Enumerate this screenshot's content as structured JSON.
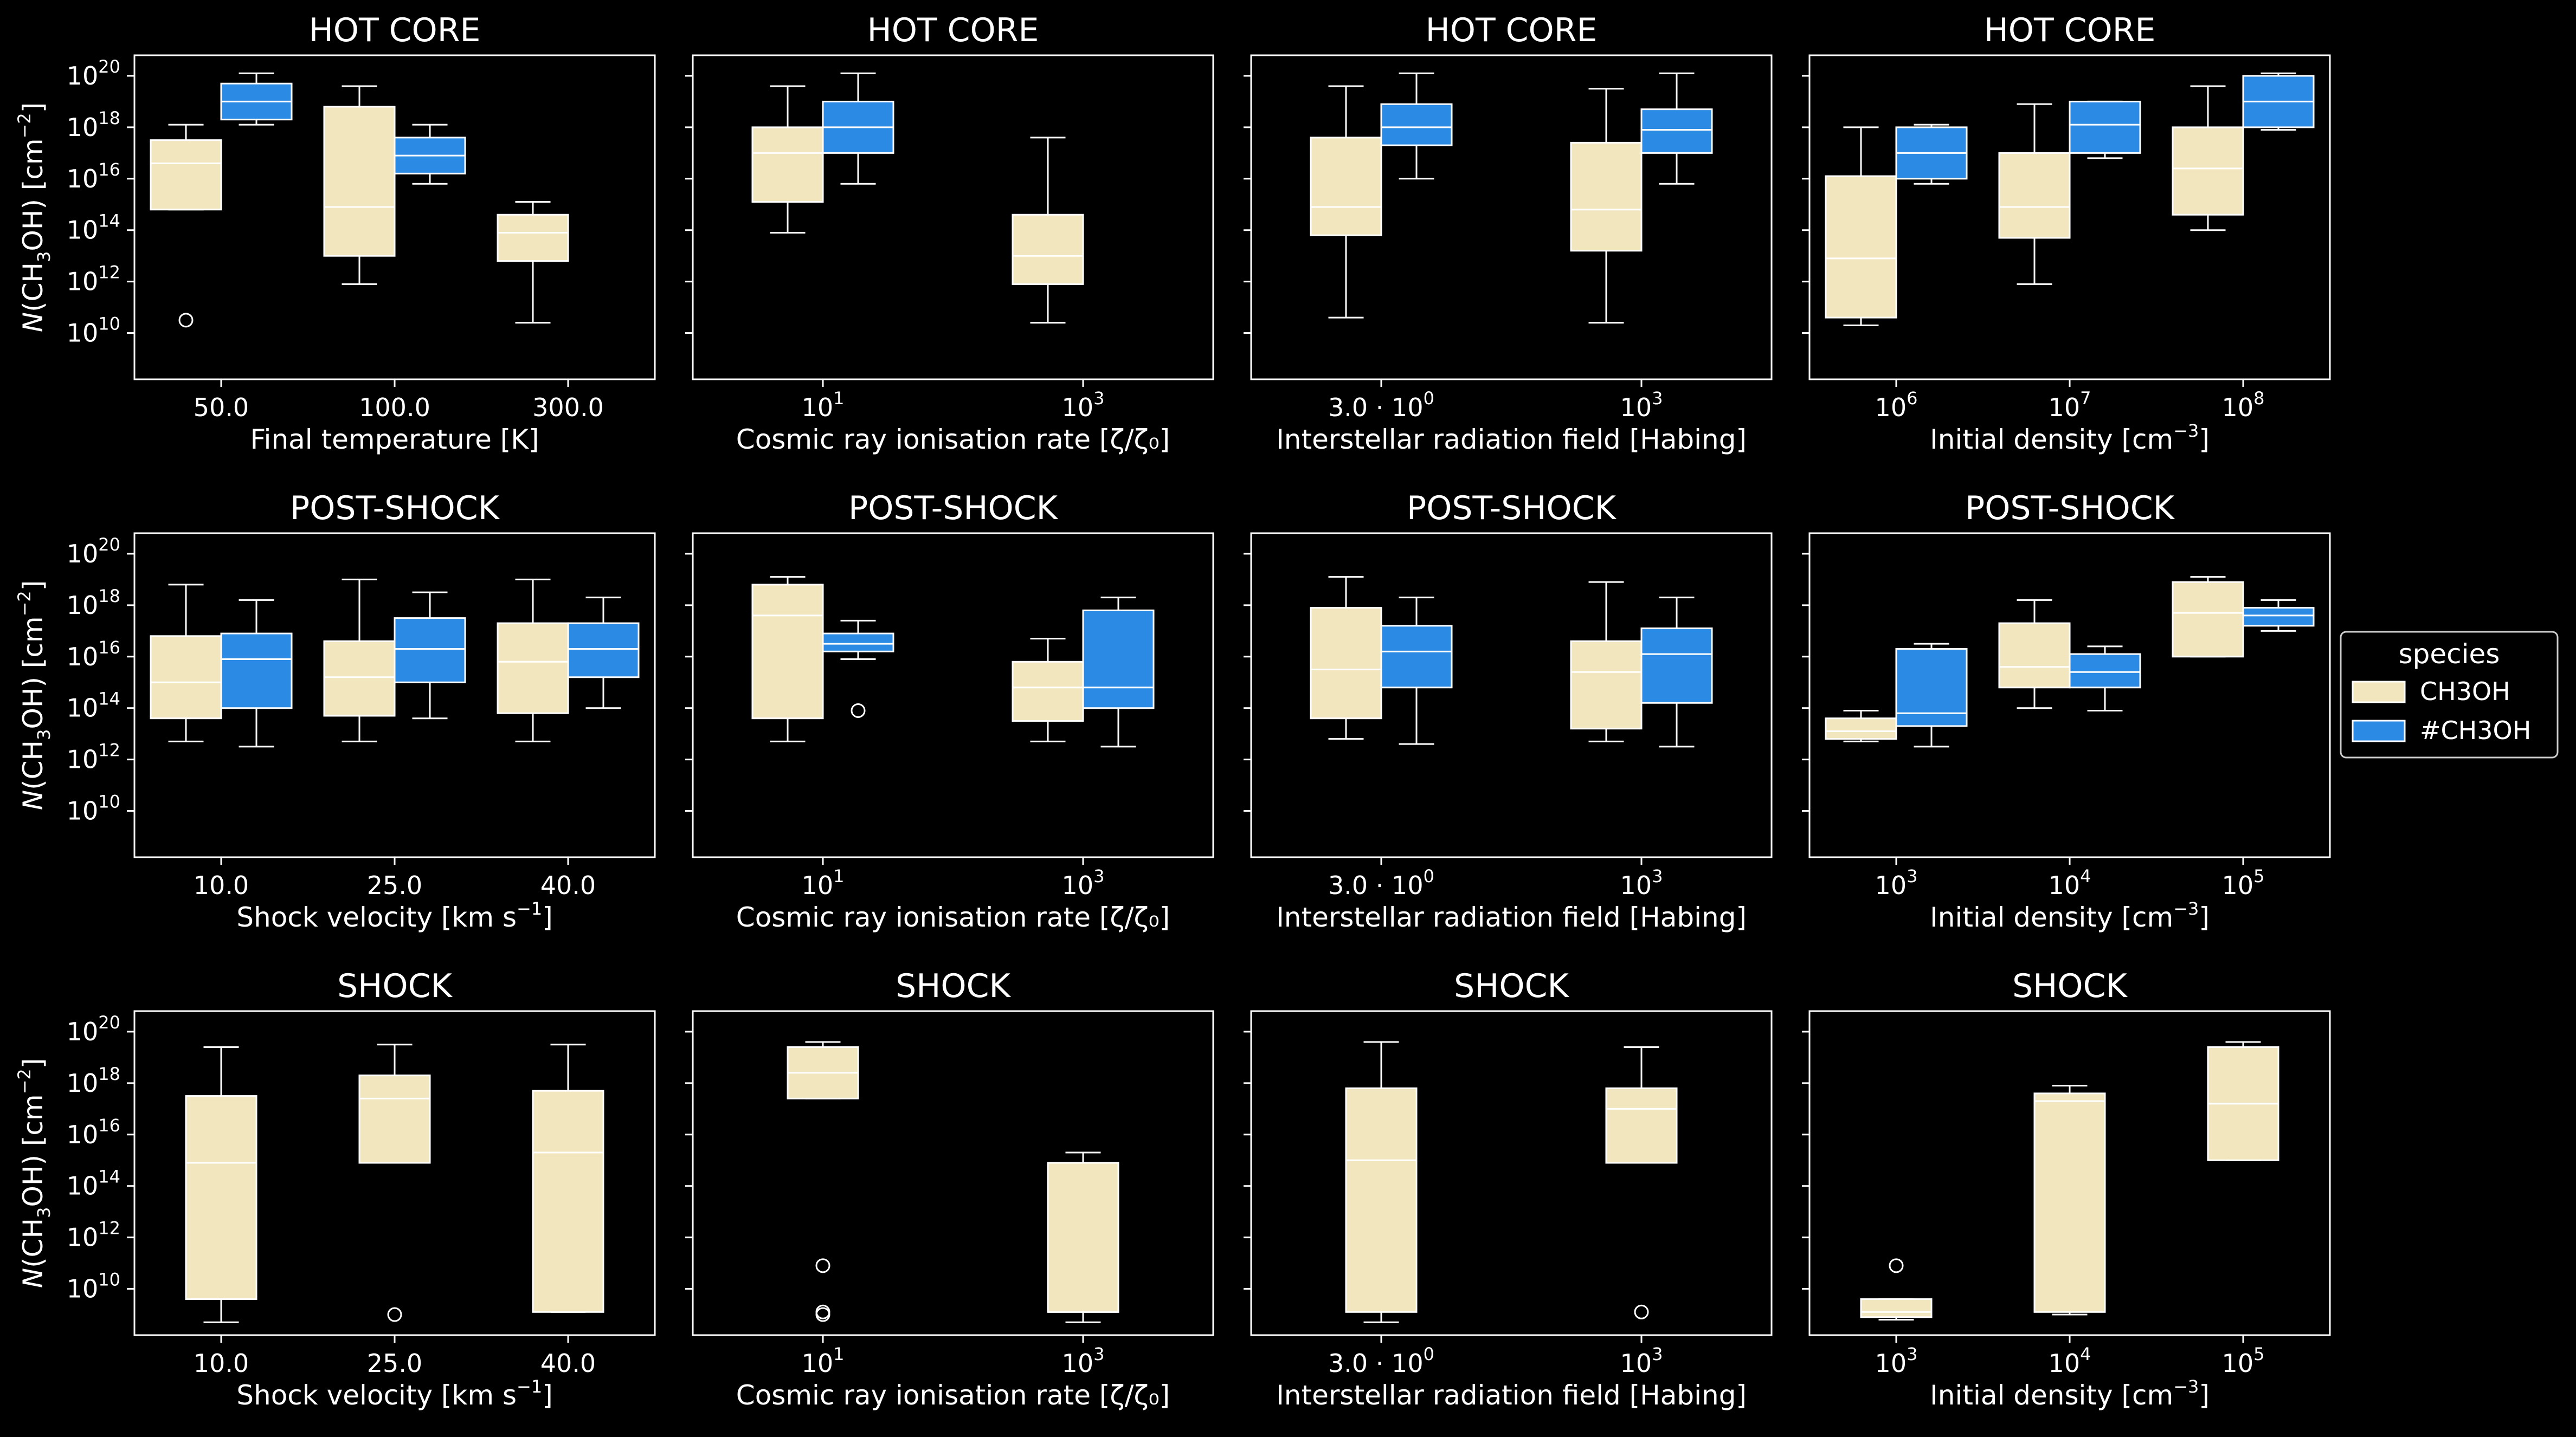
{
  "legend": {
    "title": "species",
    "entries": [
      {
        "label": "CH3OH",
        "color": "#f2e6bf"
      },
      {
        "label": "#CH3OH",
        "color": "#2b8ae3"
      }
    ]
  },
  "y_label": {
    "prefix": "N",
    "molecule": "(CH",
    "sub": "3",
    "mid": "OH) [cm",
    "sup": "−2",
    "suffix": "]"
  },
  "y_ticks": [
    {
      "base": "10",
      "exp": "10",
      "log": 10
    },
    {
      "base": "10",
      "exp": "12",
      "log": 12
    },
    {
      "base": "10",
      "exp": "14",
      "log": 14
    },
    {
      "base": "10",
      "exp": "16",
      "log": 16
    },
    {
      "base": "10",
      "exp": "18",
      "log": 18
    },
    {
      "base": "10",
      "exp": "20",
      "log": 20
    }
  ],
  "chart_data": [
    {
      "type": "box",
      "title": "HOT CORE",
      "xlabel": "Final temperature [K]",
      "categories": [
        {
          "text": "50.0"
        },
        {
          "text": "100.0"
        },
        {
          "text": "300.0"
        }
      ],
      "ylim_log10": [
        8.2,
        20.8
      ],
      "yscale": "log",
      "series": [
        {
          "name": "CH3OH",
          "boxes": [
            {
              "category": 0,
              "whislo": 14.8,
              "q1": 14.8,
              "median": 16.6,
              "q3": 17.5,
              "whishi": 18.1,
              "fliers": [
                10.5
              ]
            },
            {
              "category": 1,
              "whislo": 11.9,
              "q1": 13.0,
              "median": 14.9,
              "q3": 18.8,
              "whishi": 19.6,
              "fliers": []
            },
            {
              "category": 2,
              "whislo": 10.4,
              "q1": 12.8,
              "median": 13.9,
              "q3": 14.6,
              "whishi": 15.1,
              "fliers": []
            }
          ]
        },
        {
          "name": "#CH3OH",
          "boxes": [
            {
              "category": 0,
              "whislo": 18.1,
              "q1": 18.3,
              "median": 19.0,
              "q3": 19.7,
              "whishi": 20.1,
              "fliers": []
            },
            {
              "category": 1,
              "whislo": 15.8,
              "q1": 16.2,
              "median": 16.9,
              "q3": 17.6,
              "whishi": 18.1,
              "fliers": []
            }
          ]
        }
      ]
    },
    {
      "type": "box",
      "title": "HOT CORE",
      "xlabel": "Cosmic ray ionisation rate [ζ/ζ₀]",
      "categories": [
        {
          "base": "10",
          "exp": "1"
        },
        {
          "base": "10",
          "exp": "3"
        }
      ],
      "ylim_log10": [
        8.2,
        20.8
      ],
      "yscale": "log",
      "series": [
        {
          "name": "CH3OH",
          "boxes": [
            {
              "category": 0,
              "whislo": 13.9,
              "q1": 15.1,
              "median": 17.0,
              "q3": 18.0,
              "whishi": 19.6,
              "fliers": []
            },
            {
              "category": 1,
              "whislo": 10.4,
              "q1": 11.9,
              "median": 13.0,
              "q3": 14.6,
              "whishi": 17.6,
              "fliers": []
            }
          ]
        },
        {
          "name": "#CH3OH",
          "boxes": [
            {
              "category": 0,
              "whislo": 15.8,
              "q1": 17.0,
              "median": 18.0,
              "q3": 19.0,
              "whishi": 20.1,
              "fliers": []
            }
          ]
        }
      ]
    },
    {
      "type": "box",
      "title": "HOT CORE",
      "xlabel": "Interstellar radiation field [Habing]",
      "categories": [
        {
          "text": "3.0 · 10",
          "exp": "0"
        },
        {
          "base": "10",
          "exp": "3"
        }
      ],
      "ylim_log10": [
        8.2,
        20.8
      ],
      "yscale": "log",
      "series": [
        {
          "name": "CH3OH",
          "boxes": [
            {
              "category": 0,
              "whislo": 10.6,
              "q1": 13.8,
              "median": 14.9,
              "q3": 17.6,
              "whishi": 19.6,
              "fliers": []
            },
            {
              "category": 1,
              "whislo": 10.4,
              "q1": 13.2,
              "median": 14.8,
              "q3": 17.4,
              "whishi": 19.5,
              "fliers": []
            }
          ]
        },
        {
          "name": "#CH3OH",
          "boxes": [
            {
              "category": 0,
              "whislo": 16.0,
              "q1": 17.3,
              "median": 18.0,
              "q3": 18.9,
              "whishi": 20.1,
              "fliers": []
            },
            {
              "category": 1,
              "whislo": 15.8,
              "q1": 17.0,
              "median": 17.9,
              "q3": 18.7,
              "whishi": 20.1,
              "fliers": []
            }
          ]
        }
      ]
    },
    {
      "type": "box",
      "title": "HOT CORE",
      "xlabel": "Initial density [cm",
      "xlabel_sup": "−3",
      "xlabel_suffix": "]",
      "categories": [
        {
          "base": "10",
          "exp": "6"
        },
        {
          "base": "10",
          "exp": "7"
        },
        {
          "base": "10",
          "exp": "8"
        }
      ],
      "ylim_log10": [
        8.2,
        20.8
      ],
      "yscale": "log",
      "series": [
        {
          "name": "CH3OH",
          "boxes": [
            {
              "category": 0,
              "whislo": 10.3,
              "q1": 10.6,
              "median": 12.9,
              "q3": 16.1,
              "whishi": 18.0,
              "fliers": []
            },
            {
              "category": 1,
              "whislo": 11.9,
              "q1": 13.7,
              "median": 14.9,
              "q3": 17.0,
              "whishi": 18.9,
              "fliers": []
            },
            {
              "category": 2,
              "whislo": 14.0,
              "q1": 14.6,
              "median": 16.4,
              "q3": 18.0,
              "whishi": 19.6,
              "fliers": []
            }
          ]
        },
        {
          "name": "#CH3OH",
          "boxes": [
            {
              "category": 0,
              "whislo": 15.8,
              "q1": 16.0,
              "median": 17.0,
              "q3": 18.0,
              "whishi": 18.1,
              "fliers": []
            },
            {
              "category": 1,
              "whislo": 16.8,
              "q1": 17.0,
              "median": 18.1,
              "q3": 19.0,
              "whishi": 19.0,
              "fliers": []
            },
            {
              "category": 2,
              "whislo": 17.9,
              "q1": 18.0,
              "median": 19.0,
              "q3": 20.0,
              "whishi": 20.1,
              "fliers": []
            }
          ]
        }
      ]
    },
    {
      "type": "box",
      "title": "POST-SHOCK",
      "xlabel": "Shock velocity [km s",
      "xlabel_sup": "−1",
      "xlabel_suffix": "]",
      "categories": [
        {
          "text": "10.0"
        },
        {
          "text": "25.0"
        },
        {
          "text": "40.0"
        }
      ],
      "ylim_log10": [
        8.2,
        20.8
      ],
      "yscale": "log",
      "series": [
        {
          "name": "CH3OH",
          "boxes": [
            {
              "category": 0,
              "whislo": 12.7,
              "q1": 13.6,
              "median": 15.0,
              "q3": 16.8,
              "whishi": 18.8,
              "fliers": []
            },
            {
              "category": 1,
              "whislo": 12.7,
              "q1": 13.7,
              "median": 15.2,
              "q3": 16.6,
              "whishi": 19.0,
              "fliers": []
            },
            {
              "category": 2,
              "whislo": 12.7,
              "q1": 13.8,
              "median": 15.8,
              "q3": 17.3,
              "whishi": 19.0,
              "fliers": []
            }
          ]
        },
        {
          "name": "#CH3OH",
          "boxes": [
            {
              "category": 0,
              "whislo": 12.5,
              "q1": 14.0,
              "median": 15.9,
              "q3": 16.9,
              "whishi": 18.2,
              "fliers": []
            },
            {
              "category": 1,
              "whislo": 13.6,
              "q1": 15.0,
              "median": 16.3,
              "q3": 17.5,
              "whishi": 18.5,
              "fliers": []
            },
            {
              "category": 2,
              "whislo": 14.0,
              "q1": 15.2,
              "median": 16.3,
              "q3": 17.3,
              "whishi": 18.3,
              "fliers": []
            }
          ]
        }
      ]
    },
    {
      "type": "box",
      "title": "POST-SHOCK",
      "xlabel": "Cosmic ray ionisation rate [ζ/ζ₀]",
      "categories": [
        {
          "base": "10",
          "exp": "1"
        },
        {
          "base": "10",
          "exp": "3"
        }
      ],
      "ylim_log10": [
        8.2,
        20.8
      ],
      "yscale": "log",
      "series": [
        {
          "name": "CH3OH",
          "boxes": [
            {
              "category": 0,
              "whislo": 12.7,
              "q1": 13.6,
              "median": 17.6,
              "q3": 18.8,
              "whishi": 19.1,
              "fliers": []
            },
            {
              "category": 1,
              "whislo": 12.7,
              "q1": 13.5,
              "median": 14.8,
              "q3": 15.8,
              "whishi": 16.7,
              "fliers": []
            }
          ]
        },
        {
          "name": "#CH3OH",
          "boxes": [
            {
              "category": 0,
              "whislo": 15.9,
              "q1": 16.2,
              "median": 16.5,
              "q3": 16.9,
              "whishi": 17.4,
              "fliers": [
                13.9
              ]
            },
            {
              "category": 1,
              "whislo": 12.5,
              "q1": 14.0,
              "median": 14.8,
              "q3": 17.8,
              "whishi": 18.3,
              "fliers": []
            }
          ]
        }
      ]
    },
    {
      "type": "box",
      "title": "POST-SHOCK",
      "xlabel": "Interstellar radiation field [Habing]",
      "categories": [
        {
          "text": "3.0 · 10",
          "exp": "0"
        },
        {
          "base": "10",
          "exp": "3"
        }
      ],
      "ylim_log10": [
        8.2,
        20.8
      ],
      "yscale": "log",
      "series": [
        {
          "name": "CH3OH",
          "boxes": [
            {
              "category": 0,
              "whislo": 12.8,
              "q1": 13.6,
              "median": 15.5,
              "q3": 17.9,
              "whishi": 19.1,
              "fliers": []
            },
            {
              "category": 1,
              "whislo": 12.7,
              "q1": 13.2,
              "median": 15.4,
              "q3": 16.6,
              "whishi": 18.9,
              "fliers": []
            }
          ]
        },
        {
          "name": "#CH3OH",
          "boxes": [
            {
              "category": 0,
              "whislo": 12.6,
              "q1": 14.8,
              "median": 16.2,
              "q3": 17.2,
              "whishi": 18.3,
              "fliers": []
            },
            {
              "category": 1,
              "whislo": 12.5,
              "q1": 14.2,
              "median": 16.1,
              "q3": 17.1,
              "whishi": 18.3,
              "fliers": []
            }
          ]
        }
      ]
    },
    {
      "type": "box",
      "title": "POST-SHOCK",
      "xlabel": "Initial density [cm",
      "xlabel_sup": "−3",
      "xlabel_suffix": "]",
      "categories": [
        {
          "base": "10",
          "exp": "3"
        },
        {
          "base": "10",
          "exp": "4"
        },
        {
          "base": "10",
          "exp": "5"
        }
      ],
      "ylim_log10": [
        8.2,
        20.8
      ],
      "yscale": "log",
      "series": [
        {
          "name": "CH3OH",
          "boxes": [
            {
              "category": 0,
              "whislo": 12.7,
              "q1": 12.8,
              "median": 13.1,
              "q3": 13.6,
              "whishi": 13.9,
              "fliers": []
            },
            {
              "category": 1,
              "whislo": 14.0,
              "q1": 14.8,
              "median": 15.6,
              "q3": 17.3,
              "whishi": 18.2,
              "fliers": []
            },
            {
              "category": 2,
              "whislo": 16.0,
              "q1": 16.0,
              "median": 17.7,
              "q3": 18.9,
              "whishi": 19.1,
              "fliers": []
            }
          ]
        },
        {
          "name": "#CH3OH",
          "boxes": [
            {
              "category": 0,
              "whislo": 12.5,
              "q1": 13.3,
              "median": 13.8,
              "q3": 16.3,
              "whishi": 16.5,
              "fliers": []
            },
            {
              "category": 1,
              "whislo": 13.9,
              "q1": 14.8,
              "median": 15.4,
              "q3": 16.1,
              "whishi": 16.4,
              "fliers": []
            },
            {
              "category": 2,
              "whislo": 17.0,
              "q1": 17.2,
              "median": 17.6,
              "q3": 17.9,
              "whishi": 18.2,
              "fliers": []
            }
          ]
        }
      ]
    },
    {
      "type": "box",
      "title": "SHOCK",
      "xlabel": "Shock velocity [km s",
      "xlabel_sup": "−1",
      "xlabel_suffix": "]",
      "categories": [
        {
          "text": "10.0"
        },
        {
          "text": "25.0"
        },
        {
          "text": "40.0"
        }
      ],
      "ylim_log10": [
        8.2,
        20.8
      ],
      "yscale": "log",
      "series": [
        {
          "name": "CH3OH",
          "boxes": [
            {
              "category": 0,
              "whislo": 8.7,
              "q1": 9.6,
              "median": 14.9,
              "q3": 17.5,
              "whishi": 19.4,
              "fliers": []
            },
            {
              "category": 1,
              "whislo": 14.9,
              "q1": 14.9,
              "median": 17.4,
              "q3": 18.3,
              "whishi": 19.5,
              "fliers": [
                9.0
              ]
            },
            {
              "category": 2,
              "whislo": 9.1,
              "q1": 9.1,
              "median": 15.3,
              "q3": 17.7,
              "whishi": 19.5,
              "fliers": []
            }
          ]
        }
      ]
    },
    {
      "type": "box",
      "title": "SHOCK",
      "xlabel": "Cosmic ray ionisation rate [ζ/ζ₀]",
      "categories": [
        {
          "base": "10",
          "exp": "1"
        },
        {
          "base": "10",
          "exp": "3"
        }
      ],
      "ylim_log10": [
        8.2,
        20.8
      ],
      "yscale": "log",
      "series": [
        {
          "name": "CH3OH",
          "boxes": [
            {
              "category": 0,
              "whislo": 17.4,
              "q1": 17.4,
              "median": 18.4,
              "q3": 19.4,
              "whishi": 19.6,
              "fliers": [
                10.9,
                9.1,
                9.0
              ]
            },
            {
              "category": 1,
              "whislo": 8.7,
              "q1": 9.1,
              "median": 9.1,
              "q3": 14.9,
              "whishi": 15.3,
              "fliers": []
            }
          ]
        }
      ]
    },
    {
      "type": "box",
      "title": "SHOCK",
      "xlabel": "Interstellar radiation field [Habing]",
      "categories": [
        {
          "text": "3.0 · 10",
          "exp": "0"
        },
        {
          "base": "10",
          "exp": "3"
        }
      ],
      "ylim_log10": [
        8.2,
        20.8
      ],
      "yscale": "log",
      "series": [
        {
          "name": "CH3OH",
          "boxes": [
            {
              "category": 0,
              "whislo": 8.7,
              "q1": 9.1,
              "median": 15.0,
              "q3": 17.8,
              "whishi": 19.6,
              "fliers": []
            },
            {
              "category": 1,
              "whislo": 14.9,
              "q1": 14.9,
              "median": 17.0,
              "q3": 17.8,
              "whishi": 19.4,
              "fliers": [
                9.1
              ]
            }
          ]
        }
      ]
    },
    {
      "type": "box",
      "title": "SHOCK",
      "xlabel": "Initial density [cm",
      "xlabel_sup": "−3",
      "xlabel_suffix": "]",
      "categories": [
        {
          "base": "10",
          "exp": "3"
        },
        {
          "base": "10",
          "exp": "4"
        },
        {
          "base": "10",
          "exp": "5"
        }
      ],
      "ylim_log10": [
        8.2,
        20.8
      ],
      "yscale": "log",
      "series": [
        {
          "name": "CH3OH",
          "boxes": [
            {
              "category": 0,
              "whislo": 8.8,
              "q1": 8.9,
              "median": 9.1,
              "q3": 9.6,
              "whishi": 9.6,
              "fliers": [
                10.9
              ]
            },
            {
              "category": 1,
              "whislo": 9.0,
              "q1": 9.1,
              "median": 17.3,
              "q3": 17.6,
              "whishi": 17.9,
              "fliers": []
            },
            {
              "category": 2,
              "whislo": 15.0,
              "q1": 15.0,
              "median": 17.2,
              "q3": 19.4,
              "whishi": 19.6,
              "fliers": []
            }
          ]
        }
      ]
    }
  ]
}
